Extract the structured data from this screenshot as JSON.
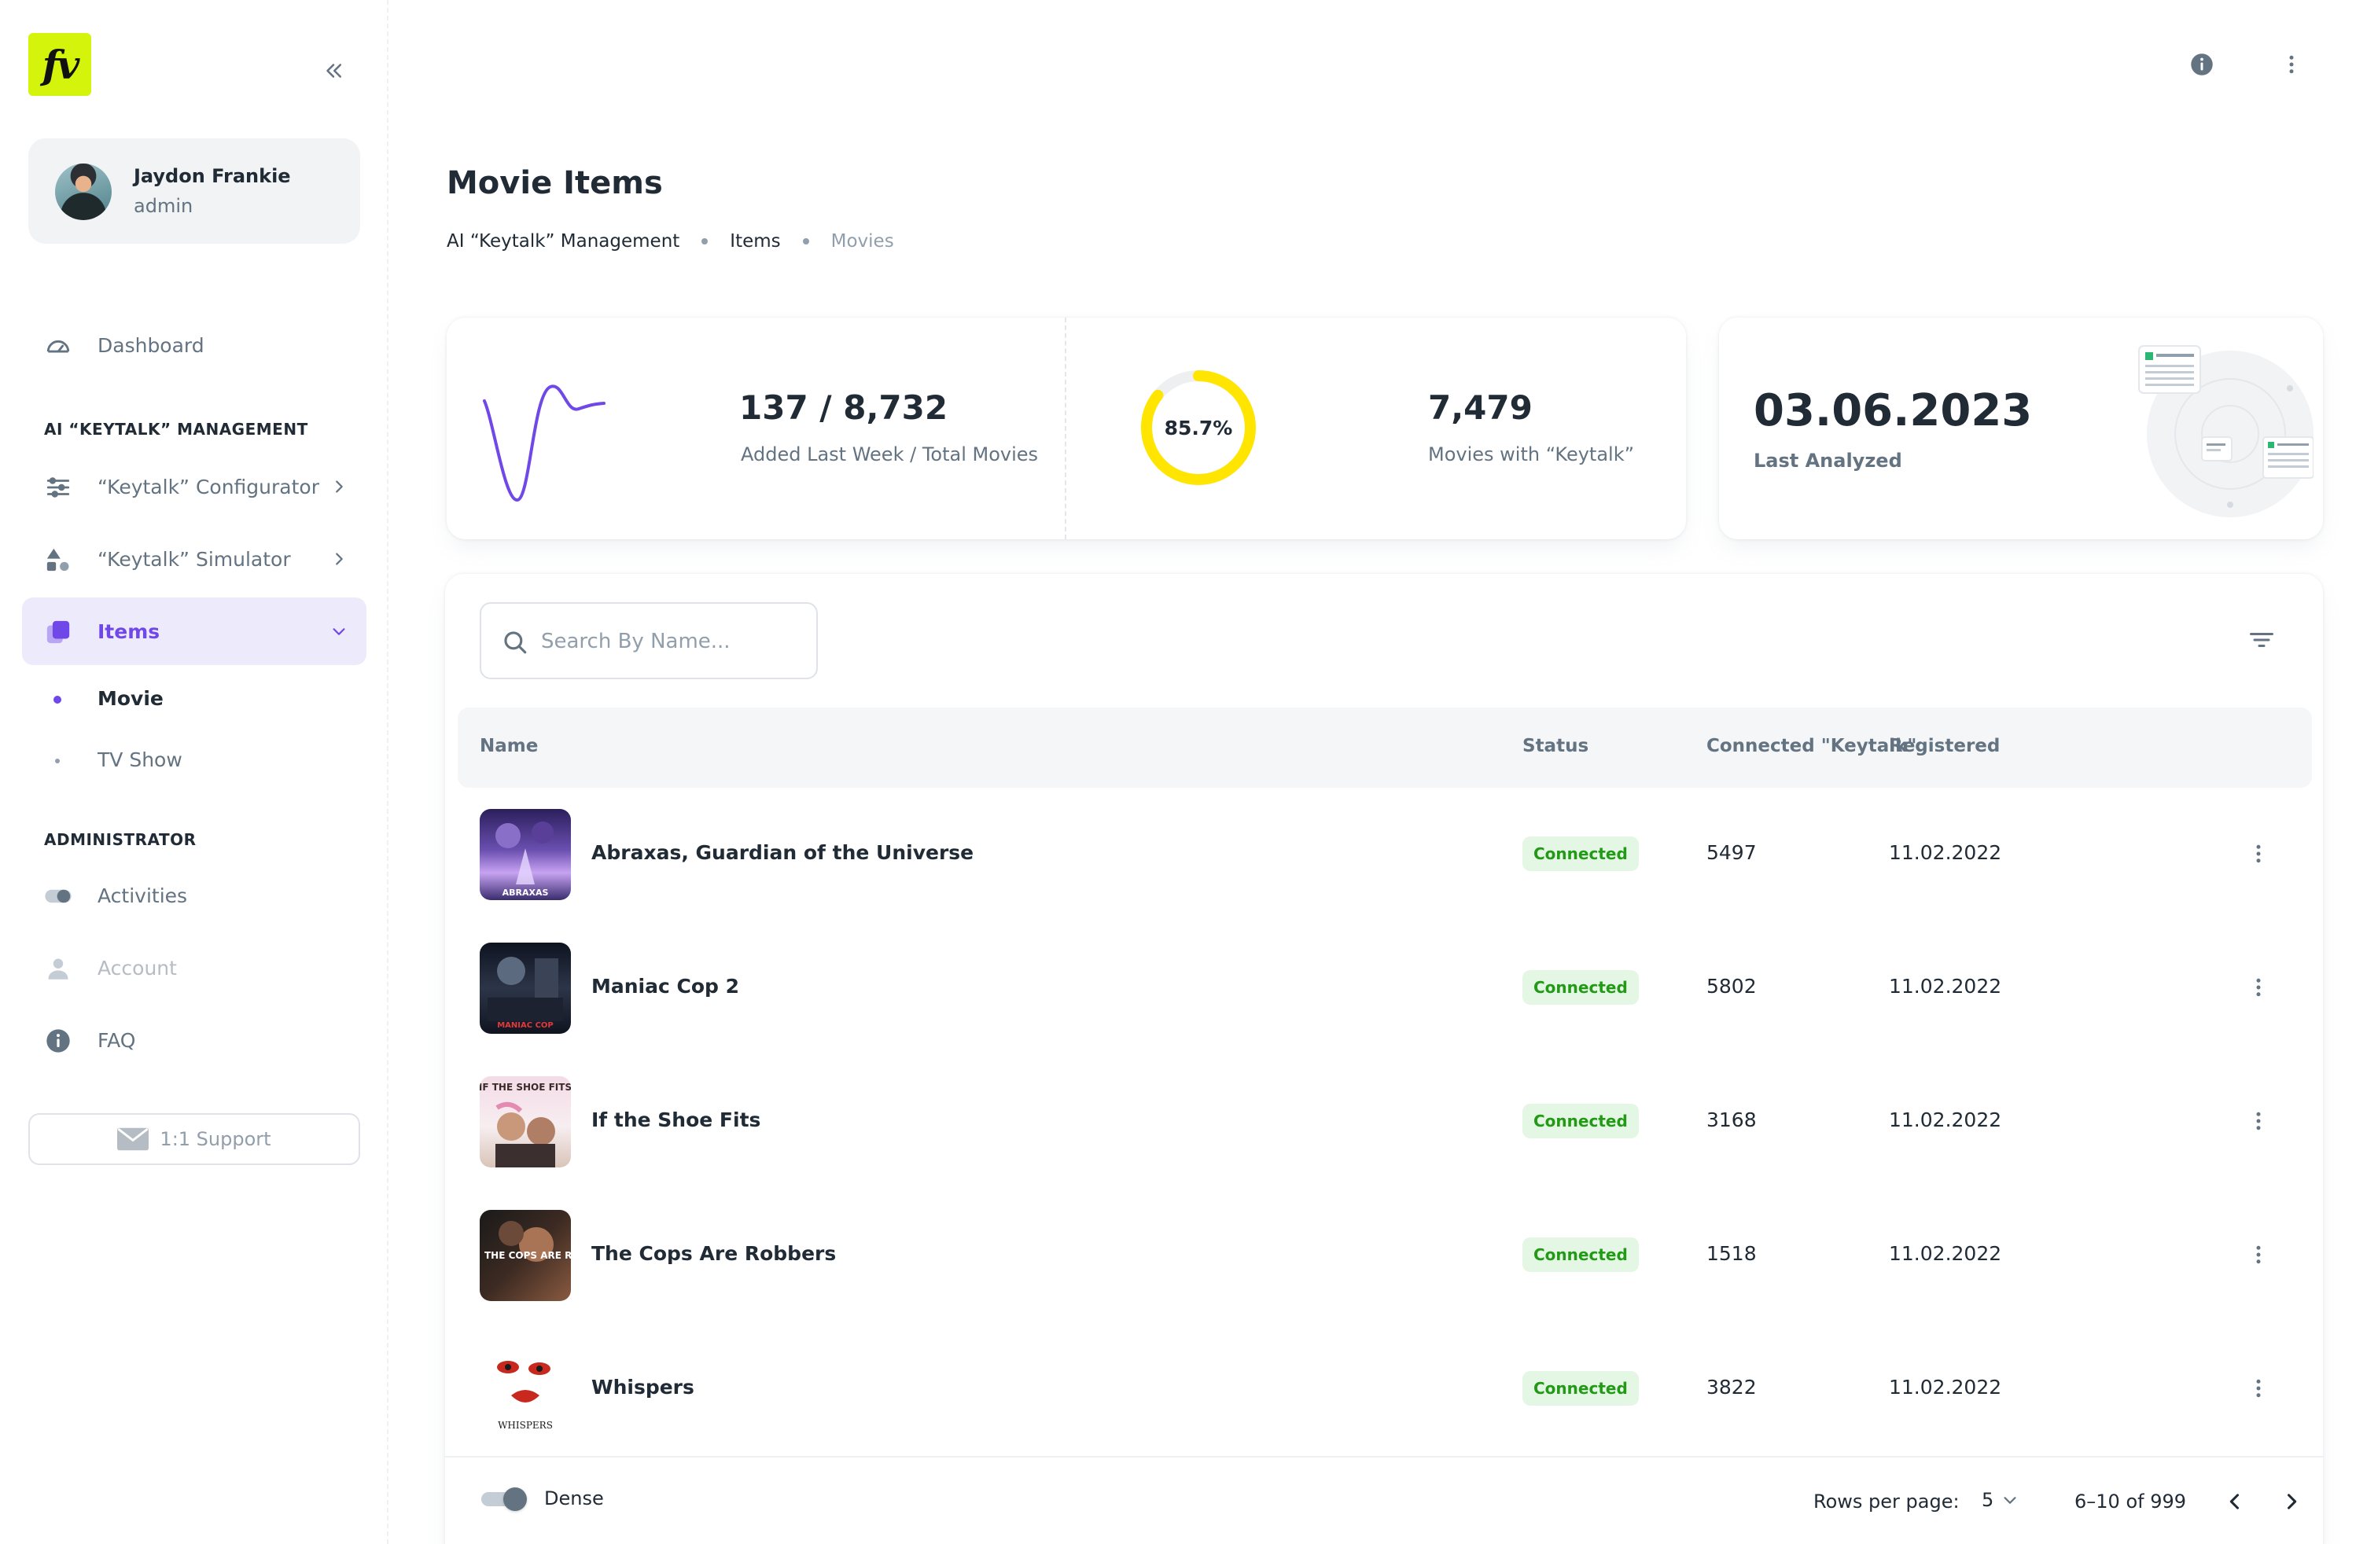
{
  "brand": {
    "logo_text": "fv",
    "accent": "#D4F50B"
  },
  "user": {
    "name": "Jaydon Frankie",
    "role": "admin"
  },
  "nav": {
    "dashboard": "Dashboard",
    "section_keytalk": "AI “KEYTALK” MANAGEMENT",
    "configurator": "“Keytalk” Configurator",
    "simulator": "“Keytalk” Simulator",
    "items": "Items",
    "sub_items": [
      "Movie",
      "TV Show"
    ],
    "section_admin": "ADMINISTRATOR",
    "activities": "Activities",
    "account": "Account",
    "faq": "FAQ",
    "support": "1:1 Support",
    "active_color": "#7048E8"
  },
  "header": {
    "title": "Movie Items",
    "breadcrumbs": [
      "AI “Keytalk” Management",
      "Items",
      "Movies"
    ]
  },
  "stats": {
    "added_total": "137 / 8,732",
    "added_total_label": "Added Last Week / Total Movies",
    "percent": "85.7%",
    "percent_value": 85.7,
    "keytalk_count": "7,479",
    "keytalk_label": "Movies with “Keytalk”",
    "last_date": "03.06.2023",
    "last_label": "Last Analyzed"
  },
  "search": {
    "placeholder": "Search By Name..."
  },
  "table": {
    "columns": [
      "Name",
      "Status",
      "Connected \"Keytalk\"",
      "Registered"
    ],
    "rows": [
      {
        "name": "Abraxas, Guardian of the Universe",
        "status": "Connected",
        "keytalk": "5497",
        "registered": "11.02.2022"
      },
      {
        "name": "Maniac Cop 2",
        "status": "Connected",
        "keytalk": "5802",
        "registered": "11.02.2022"
      },
      {
        "name": "If the Shoe Fits",
        "status": "Connected",
        "keytalk": "3168",
        "registered": "11.02.2022"
      },
      {
        "name": "The Cops Are Robbers",
        "status": "Connected",
        "keytalk": "1518",
        "registered": "11.02.2022"
      },
      {
        "name": "Whispers",
        "status": "Connected",
        "keytalk": "3822",
        "registered": "11.02.2022"
      }
    ],
    "poster_texts": [
      "ABRAXAS",
      "MANIAC COP",
      "IF THE SHOE FITS",
      "THE COPS ARE ROBBERS",
      "WHISPERS"
    ]
  },
  "footer": {
    "dense_label": "Dense",
    "rows_per_page_label": "Rows per page:",
    "rows_per_page_value": "5",
    "range": "6–10 of 999"
  },
  "icons": [
    "collapse-double-chevron-icon",
    "dashboard-gauge-icon",
    "sliders-icon",
    "shapes-icon",
    "layers-icon",
    "toggle-icon",
    "person-icon",
    "info-icon",
    "mail-icon",
    "more-vertical-icon",
    "search-icon",
    "filter-icon",
    "chevron-left-icon",
    "chevron-right-icon",
    "chevron-down-icon"
  ]
}
